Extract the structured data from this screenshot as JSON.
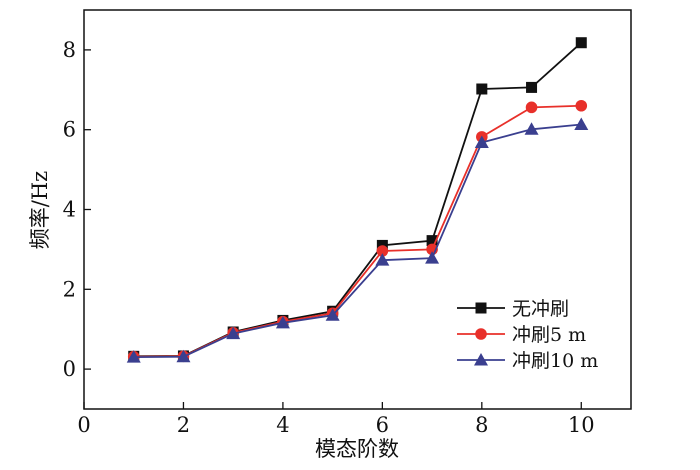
{
  "chart_data": {
    "type": "line",
    "xlabel": "模态阶数",
    "ylabel": "频率/Hz",
    "xlim": [
      0,
      11
    ],
    "ylim": [
      -1,
      9
    ],
    "xticks": [
      0,
      2,
      4,
      6,
      8,
      10
    ],
    "yticks": [
      0,
      2,
      4,
      6,
      8
    ],
    "grid": false,
    "legend_position": "lower-right",
    "x": [
      1,
      2,
      3,
      4,
      5,
      6,
      7,
      8,
      9,
      10
    ],
    "series": [
      {
        "name": "无冲刷",
        "color": "#111111",
        "marker": "square",
        "values": [
          0.32,
          0.33,
          0.93,
          1.22,
          1.45,
          3.1,
          3.22,
          7.02,
          7.06,
          8.18
        ]
      },
      {
        "name": "冲刷5 m",
        "color": "#e8302a",
        "marker": "circle",
        "values": [
          0.31,
          0.32,
          0.91,
          1.19,
          1.4,
          2.96,
          3.0,
          5.82,
          6.56,
          6.6
        ]
      },
      {
        "name": "冲刷10 m",
        "color": "#3a3f8f",
        "marker": "triangle",
        "values": [
          0.3,
          0.31,
          0.89,
          1.16,
          1.35,
          2.73,
          2.78,
          5.68,
          6.01,
          6.13
        ]
      }
    ]
  }
}
